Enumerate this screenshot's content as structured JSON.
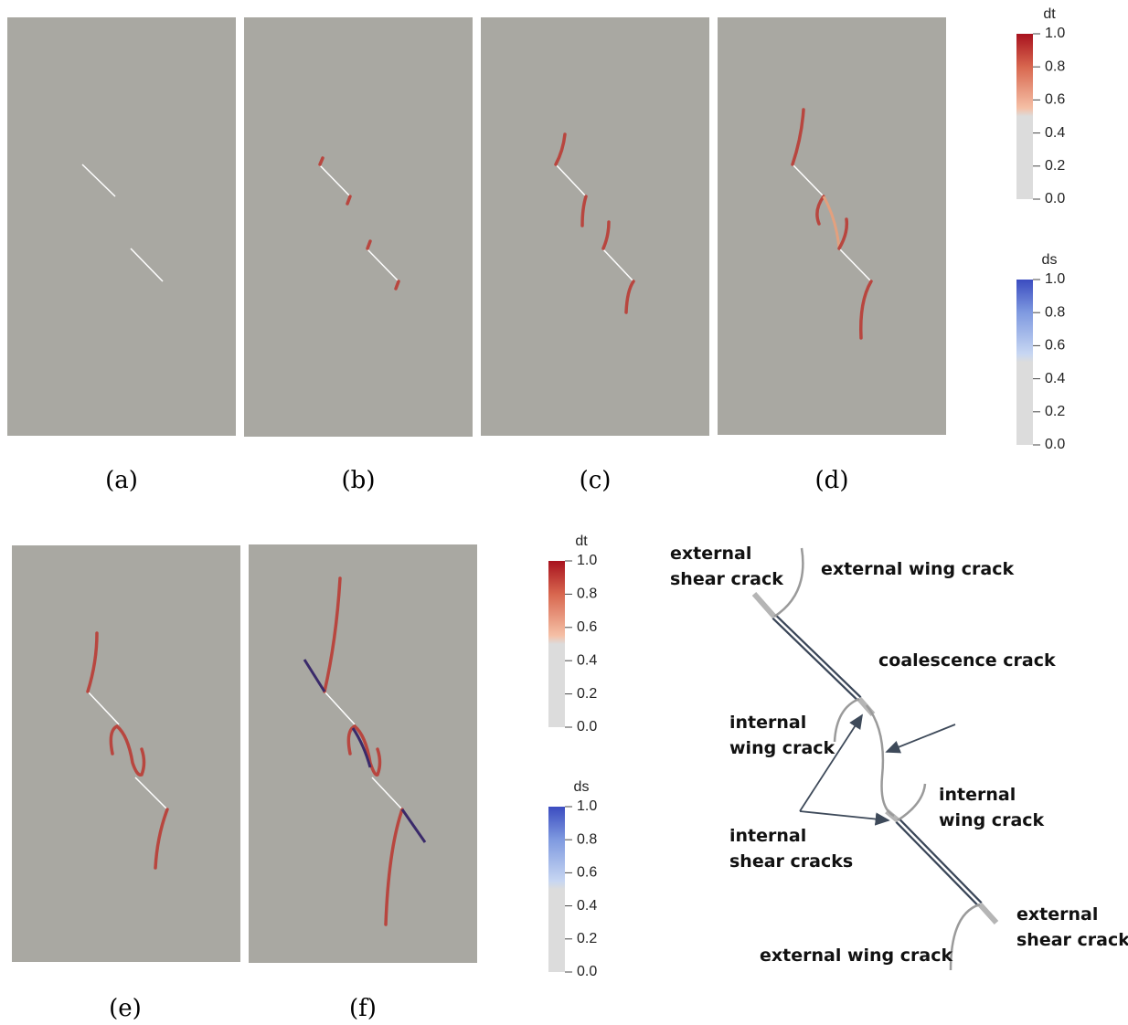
{
  "panels": [
    {
      "label": "(a)"
    },
    {
      "label": "(b)"
    },
    {
      "label": "(c)"
    },
    {
      "label": "(d)"
    },
    {
      "label": "(e)"
    },
    {
      "label": "(f)"
    }
  ],
  "colorbars": [
    {
      "title": "dt",
      "range": [
        0,
        1
      ],
      "ticks": [
        {
          "value": 0,
          "label": "0.0"
        },
        {
          "value": 0.2,
          "label": "0.2"
        },
        {
          "value": 0.4,
          "label": "0.4"
        },
        {
          "value": 0.6,
          "label": "0.6"
        },
        {
          "value": 0.8,
          "label": "0.8"
        },
        {
          "value": 1,
          "label": "1.0"
        }
      ]
    },
    {
      "title": "ds",
      "range": [
        0,
        1
      ],
      "ticks": [
        {
          "value": 0,
          "label": "0.0"
        },
        {
          "value": 0.2,
          "label": "0.2"
        },
        {
          "value": 0.4,
          "label": "0.4"
        },
        {
          "value": 0.6,
          "label": "0.6"
        },
        {
          "value": 0.8,
          "label": "0.8"
        },
        {
          "value": 1,
          "label": "1.0"
        }
      ]
    },
    {
      "title": "dt",
      "range": [
        0,
        1
      ],
      "ticks": [
        {
          "value": 0,
          "label": "0.0"
        },
        {
          "value": 0.2,
          "label": "0.2"
        },
        {
          "value": 0.4,
          "label": "0.4"
        },
        {
          "value": 0.6,
          "label": "0.6"
        },
        {
          "value": 0.8,
          "label": "0.8"
        },
        {
          "value": 1,
          "label": "1.0"
        }
      ]
    },
    {
      "title": "ds",
      "range": [
        0,
        1
      ],
      "ticks": [
        {
          "value": 0,
          "label": "0.0"
        },
        {
          "value": 0.2,
          "label": "0.2"
        },
        {
          "value": 0.4,
          "label": "0.4"
        },
        {
          "value": 0.6,
          "label": "0.6"
        },
        {
          "value": 0.8,
          "label": "0.8"
        },
        {
          "value": 1,
          "label": "1.0"
        }
      ]
    }
  ],
  "diagram": {
    "labels": [
      "external",
      "shear crack",
      "external wing crack",
      "coalescence  crack",
      "internal",
      "wing crack",
      "internal",
      "wing crack",
      "internal",
      "shear cracks",
      "external",
      "shear crack",
      "external wing crack"
    ]
  }
}
